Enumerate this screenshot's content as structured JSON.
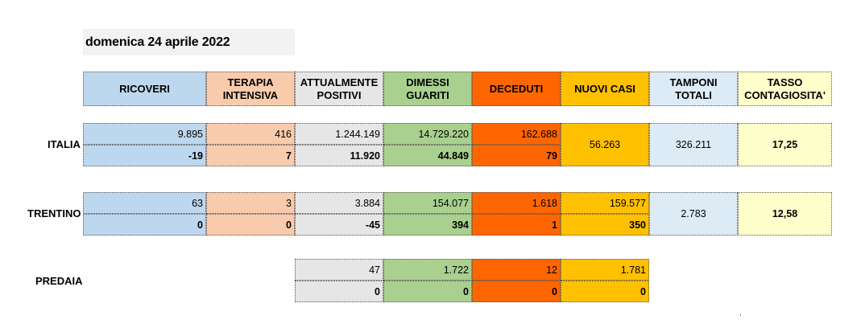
{
  "date": "domenica 24 aprile 2022",
  "colors": {
    "ricoveri": "#bdd7ee",
    "terapia": "#f8cbad",
    "attualmente": "#e7e6e6",
    "dimessi": "#a9d08e",
    "deceduti": "#ff6600",
    "nuovi": "#ffc000",
    "tamponi": "#ddebf7",
    "tasso": "#ffffcc"
  },
  "headers": {
    "ricoveri": "RICOVERI",
    "terapia": "TERAPIA\nINTENSIVA",
    "attualmente": "ATTUALMENTE\nPOSITIVI",
    "dimessi": "DIMESSI\nGUARITI",
    "deceduti": "DECEDUTI",
    "nuovi": "NUOVI CASI",
    "tamponi": "TAMPONI\nTOTALI",
    "tasso": "TASSO\nCONTAGIOSITA'"
  },
  "italia": {
    "label": "ITALIA",
    "totals": {
      "ricoveri": "9.895",
      "terapia": "416",
      "attualmente": "1.244.149",
      "dimessi": "14.729.220",
      "deceduti": "162.688"
    },
    "deltas": {
      "ricoveri": "-19",
      "terapia": "7",
      "attualmente": "11.920",
      "dimessi": "44.849",
      "deceduti": "79"
    },
    "nuovi": "56.263",
    "tamponi": "326.211",
    "tasso": "17,25"
  },
  "trentino": {
    "label": "TRENTINO",
    "totals": {
      "ricoveri": "63",
      "terapia": "3",
      "attualmente": "3.884",
      "dimessi": "154.077",
      "deceduti": "1.618",
      "nuovi": "159.577"
    },
    "deltas": {
      "ricoveri": "0",
      "terapia": "0",
      "attualmente": "-45",
      "dimessi": "394",
      "deceduti": "1",
      "nuovi": "350"
    },
    "tamponi": "2.783",
    "tasso": "12,58"
  },
  "predaia": {
    "label": "PREDAIA",
    "totals": {
      "attualmente": "47",
      "dimessi": "1.722",
      "deceduti": "12",
      "nuovi": "1.781"
    },
    "deltas": {
      "attualmente": "0",
      "dimessi": "0",
      "deceduti": "0",
      "nuovi": "0"
    }
  },
  "stray_mark": ","
}
